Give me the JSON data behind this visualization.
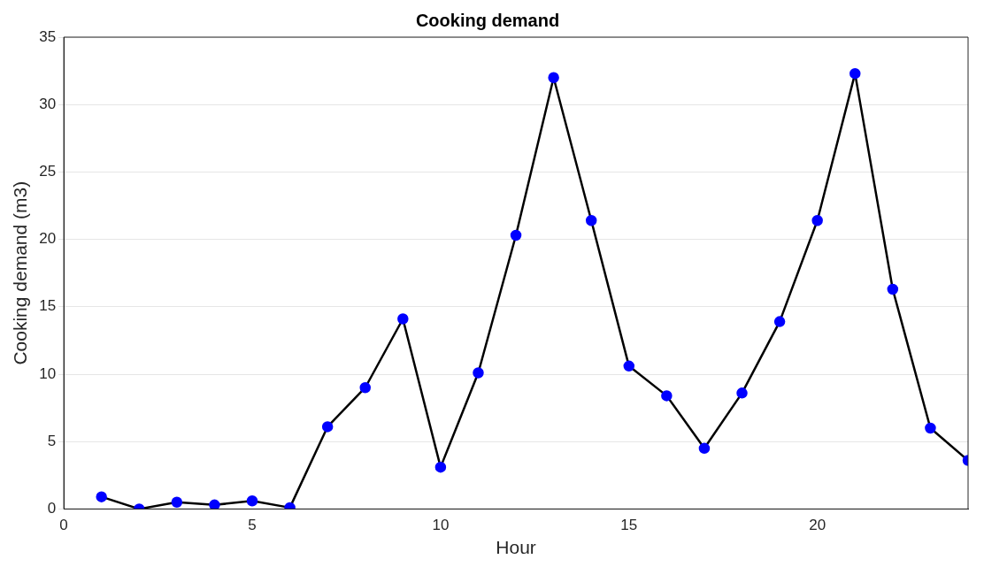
{
  "chart_data": {
    "type": "line",
    "title": "Cooking demand",
    "xlabel": "Hour",
    "ylabel": "Cooking demand (m3)",
    "x": [
      1,
      2,
      3,
      4,
      5,
      6,
      7,
      8,
      9,
      10,
      11,
      12,
      13,
      14,
      15,
      16,
      17,
      18,
      19,
      20,
      21,
      22,
      23,
      24
    ],
    "series": [
      {
        "color": "#0000ff",
        "values": [
          0.9,
          0,
          0.5,
          0.3,
          0.6,
          0.1,
          6.1,
          9.0,
          14.1,
          3.1,
          10.1,
          20.3,
          32.0,
          21.4,
          10.6,
          8.4,
          4.5,
          8.6,
          13.9,
          21.4,
          32.3,
          16.3,
          6.0,
          3.6
        ]
      }
    ],
    "xlim": [
      0,
      24
    ],
    "xticks": [
      0,
      5,
      10,
      15,
      20
    ],
    "ylim": [
      0,
      35
    ],
    "yticks": [
      0,
      5,
      10,
      15,
      20,
      25,
      30,
      35
    ],
    "grid": "y",
    "marker": "circle",
    "line_style": "solid",
    "legend": false
  }
}
